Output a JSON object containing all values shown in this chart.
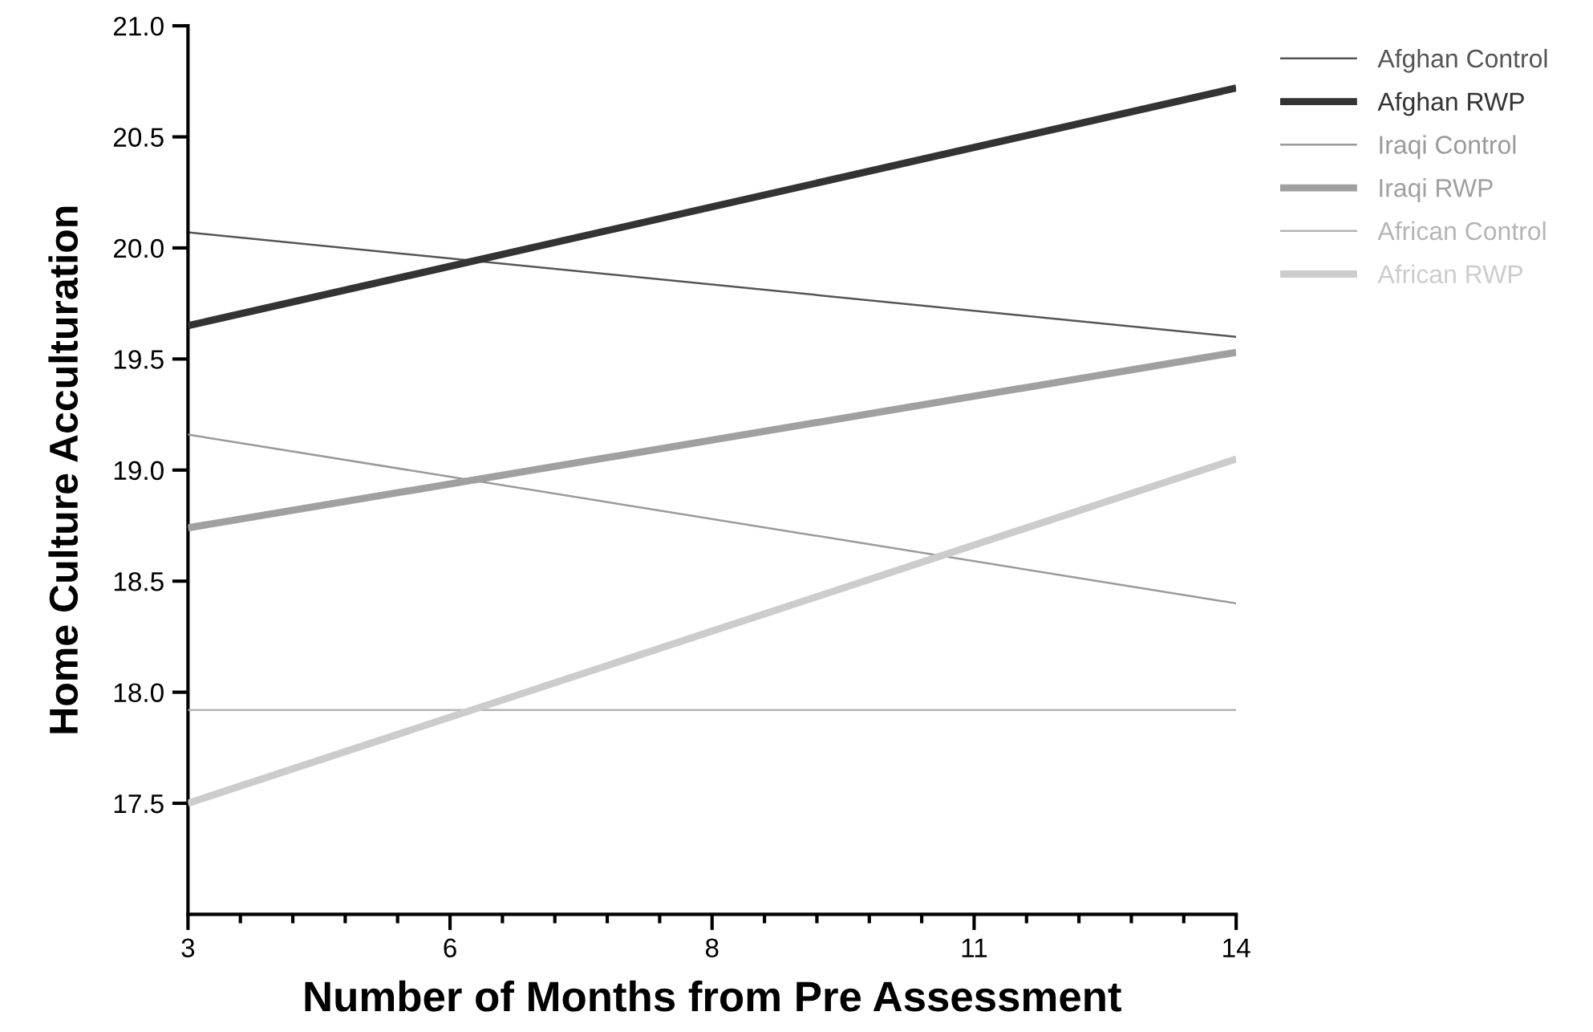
{
  "chart_data": {
    "type": "line",
    "xlabel": "Number of Months from Pre Assessment",
    "ylabel": "Home Culture Acculturation",
    "x": [
      3,
      14
    ],
    "series": [
      {
        "name": "Afghan Control",
        "color": "#555555",
        "values": [
          20.07,
          19.6
        ]
      },
      {
        "name": "Afghan RWP",
        "color": "#333333",
        "values": [
          19.65,
          20.72
        ]
      },
      {
        "name": "Iraqi Control",
        "color": "#9a9a9a",
        "values": [
          19.16,
          18.4
        ]
      },
      {
        "name": "Iraqi RWP",
        "color": "#a0a0a0",
        "values": [
          18.74,
          19.53
        ]
      },
      {
        "name": "African Control",
        "color": "#b5b5b5",
        "values": [
          17.92,
          17.92
        ]
      },
      {
        "name": "African RWP",
        "color": "#cccccc",
        "values": [
          17.5,
          19.05
        ]
      }
    ],
    "xlim": [
      3,
      14
    ],
    "xticks": [
      3,
      {
        "value": 5.75,
        "label": "6"
      },
      {
        "value": 8.5,
        "label": "8"
      },
      {
        "value": 11.25,
        "label": "11"
      },
      14
    ],
    "ylim": [
      17.0,
      21.0
    ],
    "yticks": [
      17.5,
      {
        "value": 18,
        "label": "18.0"
      },
      18.5,
      {
        "value": 19,
        "label": "19.0"
      },
      19.5,
      {
        "value": 20,
        "label": "20.0"
      },
      20.5,
      {
        "value": 21,
        "label": "21.0"
      }
    ],
    "grid": false,
    "legend": "top right",
    "marker": "none",
    "line_style": "solid"
  }
}
